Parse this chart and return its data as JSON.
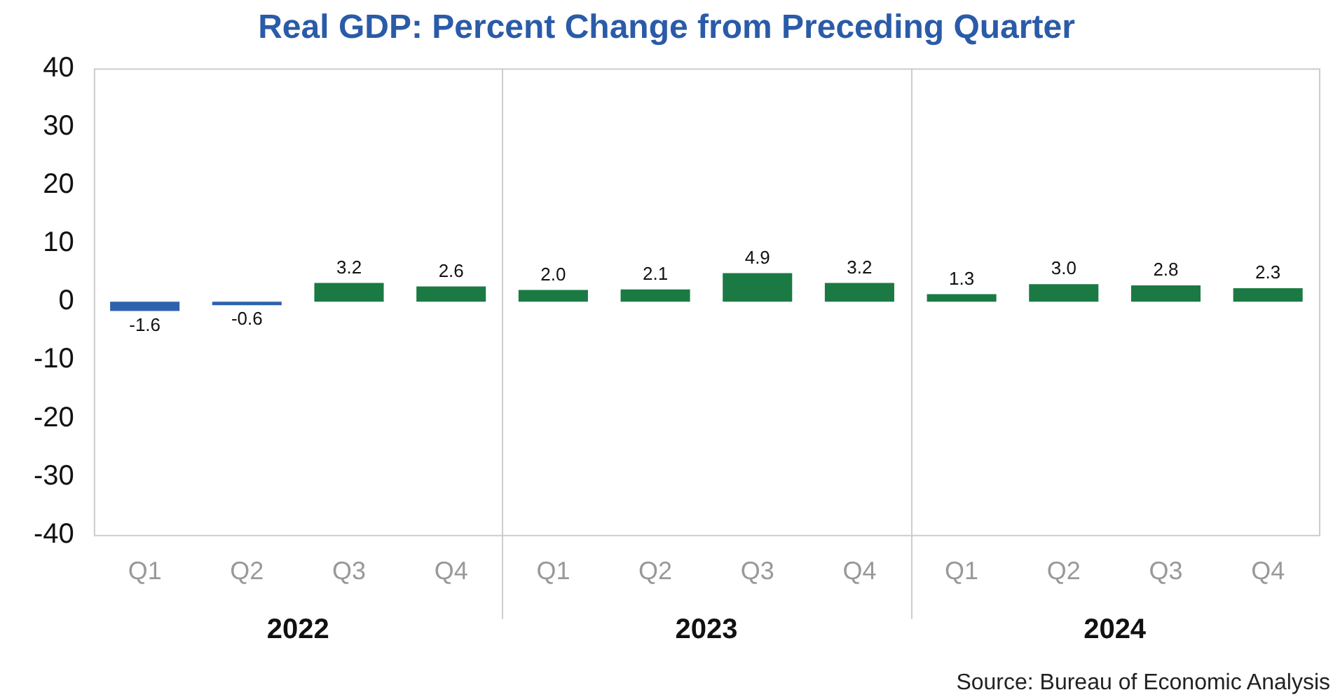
{
  "chart_data": {
    "type": "bar",
    "title": "Real GDP: Percent Change from Preceding Quarter",
    "categories": [
      "Q1",
      "Q2",
      "Q3",
      "Q4",
      "Q1",
      "Q2",
      "Q3",
      "Q4",
      "Q1",
      "Q2",
      "Q3",
      "Q4"
    ],
    "values": [
      -1.6,
      -0.6,
      3.2,
      2.6,
      2.0,
      2.1,
      4.9,
      3.2,
      1.3,
      3.0,
      2.8,
      2.3
    ],
    "colors": [
      "#2f62ad",
      "#2f62ad",
      "#1b7a43",
      "#1b7a43",
      "#1b7a43",
      "#1b7a43",
      "#1b7a43",
      "#1b7a43",
      "#1b7a43",
      "#1b7a43",
      "#1b7a43",
      "#1b7a43"
    ],
    "ylim": [
      -40,
      40
    ],
    "yticks": [
      -40,
      -30,
      -20,
      -10,
      0,
      10,
      20,
      30,
      40
    ],
    "value_labels": [
      "-1.6",
      "-0.6",
      "3.2",
      "2.6",
      "2.0",
      "2.1",
      "4.9",
      "3.2",
      "1.3",
      "3.0",
      "2.8",
      "2.3"
    ],
    "grid": false,
    "legend": false,
    "annotations": [
      "2022",
      "2023",
      "2024",
      "Source: Bureau of Economic Analysis"
    ]
  }
}
